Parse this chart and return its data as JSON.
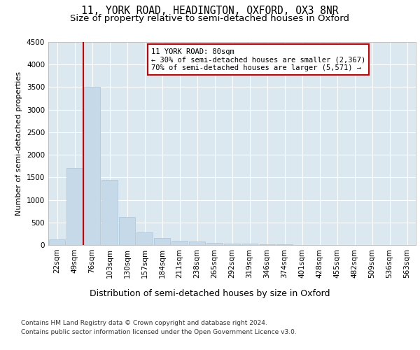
{
  "title1": "11, YORK ROAD, HEADINGTON, OXFORD, OX3 8NR",
  "title2": "Size of property relative to semi-detached houses in Oxford",
  "xlabel": "Distribution of semi-detached houses by size in Oxford",
  "ylabel": "Number of semi-detached properties",
  "annotation_title": "11 YORK ROAD: 80sqm",
  "annotation_line1": "← 30% of semi-detached houses are smaller (2,367)",
  "annotation_line2": "70% of semi-detached houses are larger (5,571) →",
  "footnote1": "Contains HM Land Registry data © Crown copyright and database right 2024.",
  "footnote2": "Contains public sector information licensed under the Open Government Licence v3.0.",
  "bar_color": "#c6d9e8",
  "bar_edge_color": "#a8c4d8",
  "vline_color": "#cc0000",
  "annotation_box_facecolor": "#ffffff",
  "annotation_box_edgecolor": "#cc0000",
  "fig_bg_color": "#ffffff",
  "plot_bg_color": "#dce8f0",
  "grid_color": "#ffffff",
  "bin_labels": [
    "22sqm",
    "49sqm",
    "76sqm",
    "103sqm",
    "130sqm",
    "157sqm",
    "184sqm",
    "211sqm",
    "238sqm",
    "265sqm",
    "292sqm",
    "319sqm",
    "346sqm",
    "374sqm",
    "401sqm",
    "428sqm",
    "455sqm",
    "482sqm",
    "509sqm",
    "536sqm",
    "563sqm"
  ],
  "bar_values": [
    130,
    1700,
    3500,
    1450,
    625,
    275,
    155,
    100,
    70,
    50,
    35,
    25,
    15,
    10,
    5,
    3,
    2,
    1,
    1,
    0,
    0
  ],
  "ylim": [
    0,
    4500
  ],
  "yticks": [
    0,
    500,
    1000,
    1500,
    2000,
    2500,
    3000,
    3500,
    4000,
    4500
  ],
  "vline_bin_index": 2,
  "title_fontsize": 10.5,
  "subtitle_fontsize": 9.5,
  "ylabel_fontsize": 8,
  "xlabel_fontsize": 9,
  "tick_fontsize": 7.5,
  "annotation_fontsize": 7.5,
  "footnote_fontsize": 6.5
}
